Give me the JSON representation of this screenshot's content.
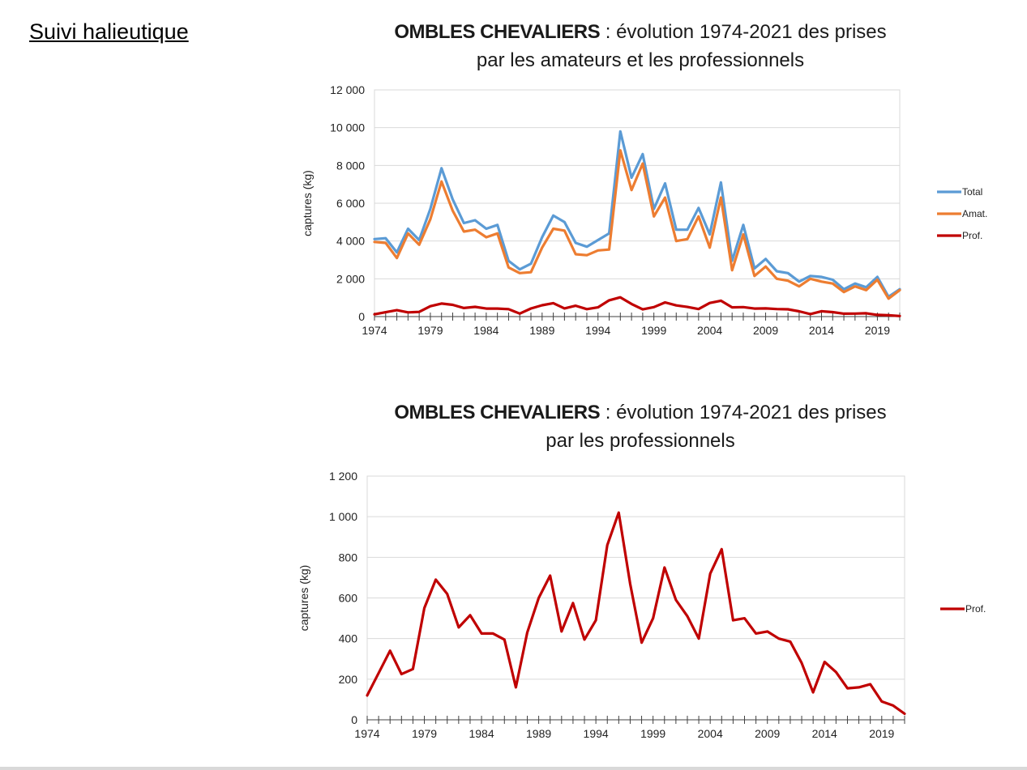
{
  "page": {
    "header": "Suivi halieutique"
  },
  "chart_data": [
    {
      "type": "line",
      "title_bold": "OMBLES CHEVALIERS",
      "title_rest": " : évolution 1974-2021 des prises",
      "title_line2": "par les amateurs et les professionnels",
      "ylabel": "captures (kg)",
      "xlabel": "",
      "xlim": [
        1974,
        2021
      ],
      "ylim": [
        0,
        12000
      ],
      "yticks": [
        0,
        2000,
        4000,
        6000,
        8000,
        10000,
        12000
      ],
      "ytick_labels": [
        "0",
        "2 000",
        "4 000",
        "6 000",
        "8 000",
        "10 000",
        "12 000"
      ],
      "xtick_labels": [
        "1974",
        "1979",
        "1984",
        "1989",
        "1994",
        "1999",
        "2004",
        "2009",
        "2014",
        "2019"
      ],
      "grid": true,
      "legend": "right",
      "x": [
        1974,
        1975,
        1976,
        1977,
        1978,
        1979,
        1980,
        1981,
        1982,
        1983,
        1984,
        1985,
        1986,
        1987,
        1988,
        1989,
        1990,
        1991,
        1992,
        1993,
        1994,
        1995,
        1996,
        1997,
        1998,
        1999,
        2000,
        2001,
        2002,
        2003,
        2004,
        2005,
        2006,
        2007,
        2008,
        2009,
        2010,
        2011,
        2012,
        2013,
        2014,
        2015,
        2016,
        2017,
        2018,
        2019,
        2020,
        2021
      ],
      "series": [
        {
          "name": "Total",
          "color": "#5b9bd5",
          "values": [
            4100,
            4150,
            3400,
            4650,
            4050,
            5700,
            7850,
            6200,
            4950,
            5100,
            4650,
            4850,
            2950,
            2500,
            2800,
            4200,
            5350,
            5000,
            3900,
            3700,
            4050,
            4400,
            9800,
            7350,
            8600,
            5700,
            7050,
            4600,
            4600,
            5750,
            4350,
            7100,
            2950,
            4850,
            2550,
            3050,
            2400,
            2300,
            1850,
            2150,
            2100,
            1950,
            1450,
            1750,
            1550,
            2100,
            1050,
            1450
          ]
        },
        {
          "name": "Amat.",
          "color": "#ed7d31",
          "values": [
            3950,
            3900,
            3100,
            4400,
            3800,
            5150,
            7150,
            5600,
            4500,
            4600,
            4200,
            4400,
            2600,
            2300,
            2350,
            3650,
            4650,
            4550,
            3300,
            3250,
            3500,
            3550,
            8800,
            6700,
            8100,
            5300,
            6300,
            4000,
            4100,
            5300,
            3650,
            6300,
            2450,
            4350,
            2150,
            2650,
            2000,
            1900,
            1600,
            2000,
            1850,
            1750,
            1300,
            1600,
            1400,
            1950,
            950,
            1400
          ]
        },
        {
          "name": "Prof.",
          "color": "#c00000",
          "values": [
            120,
            230,
            340,
            225,
            250,
            550,
            690,
            620,
            455,
            515,
            425,
            425,
            395,
            160,
            430,
            600,
            710,
            435,
            575,
            395,
            490,
            860,
            1020,
            670,
            380,
            500,
            750,
            590,
            510,
            400,
            720,
            840,
            490,
            500,
            425,
            435,
            400,
            385,
            280,
            135,
            285,
            235,
            155,
            160,
            175,
            90,
            70,
            30
          ]
        }
      ]
    },
    {
      "type": "line",
      "title_bold": "OMBLES CHEVALIERS",
      "title_rest": " : évolution 1974-2021 des prises",
      "title_line2": "par les professionnels",
      "ylabel": "captures (kg)",
      "xlabel": "",
      "xlim": [
        1974,
        2021
      ],
      "ylim": [
        0,
        1200
      ],
      "yticks": [
        0,
        200,
        400,
        600,
        800,
        1000,
        1200
      ],
      "ytick_labels": [
        "0",
        "200",
        "400",
        "600",
        "800",
        "1 000",
        "1 200"
      ],
      "xtick_labels": [
        "1974",
        "1979",
        "1984",
        "1989",
        "1994",
        "1999",
        "2004",
        "2009",
        "2014",
        "2019"
      ],
      "grid": true,
      "legend": "right",
      "x": [
        1974,
        1975,
        1976,
        1977,
        1978,
        1979,
        1980,
        1981,
        1982,
        1983,
        1984,
        1985,
        1986,
        1987,
        1988,
        1989,
        1990,
        1991,
        1992,
        1993,
        1994,
        1995,
        1996,
        1997,
        1998,
        1999,
        2000,
        2001,
        2002,
        2003,
        2004,
        2005,
        2006,
        2007,
        2008,
        2009,
        2010,
        2011,
        2012,
        2013,
        2014,
        2015,
        2016,
        2017,
        2018,
        2019,
        2020,
        2021
      ],
      "series": [
        {
          "name": "Prof.",
          "color": "#c00000",
          "values": [
            120,
            230,
            340,
            225,
            250,
            550,
            690,
            620,
            455,
            515,
            425,
            425,
            395,
            160,
            430,
            600,
            710,
            435,
            575,
            395,
            490,
            860,
            1020,
            670,
            380,
            500,
            750,
            590,
            510,
            400,
            720,
            840,
            490,
            500,
            425,
            435,
            400,
            385,
            280,
            135,
            285,
            235,
            155,
            160,
            175,
            90,
            70,
            30
          ]
        }
      ]
    }
  ]
}
